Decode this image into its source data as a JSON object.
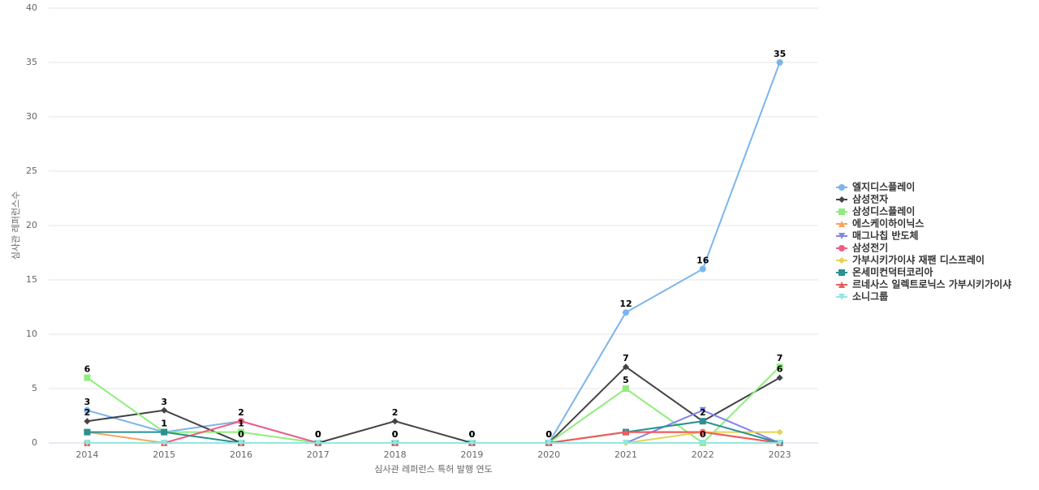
{
  "chart_data": {
    "type": "line",
    "x_label": "심사관 레퍼런스 특허 발행 연도",
    "y_label": "심사관 레퍼런스수",
    "categories": [
      "2014",
      "2015",
      "2016",
      "2017",
      "2018",
      "2019",
      "2020",
      "2021",
      "2022",
      "2023"
    ],
    "ylim": [
      0,
      40
    ],
    "yticks": [
      0,
      5,
      10,
      15,
      20,
      25,
      30,
      35,
      40
    ],
    "grid": true,
    "legend": "right",
    "series": [
      {
        "name": "엘지디스플레이",
        "color": "#7cb5ec",
        "marker": "circle",
        "values": [
          3,
          1,
          2,
          0,
          0,
          0,
          0,
          12,
          16,
          35
        ]
      },
      {
        "name": "삼성전자",
        "color": "#434348",
        "marker": "diamond",
        "values": [
          2,
          3,
          0,
          0,
          2,
          0,
          0,
          7,
          2,
          6
        ]
      },
      {
        "name": "삼성디스플레이",
        "color": "#90ed7d",
        "marker": "square",
        "values": [
          6,
          1,
          1,
          0,
          0,
          0,
          0,
          5,
          0,
          7
        ]
      },
      {
        "name": "에스케이하이닉스",
        "color": "#f7a35c",
        "marker": "triangle",
        "values": [
          1,
          0,
          0,
          0,
          0,
          0,
          0,
          1,
          1,
          0
        ]
      },
      {
        "name": "매그나칩 반도체",
        "color": "#8085e9",
        "marker": "triangle-down",
        "values": [
          0,
          0,
          0,
          0,
          0,
          0,
          0,
          0,
          3,
          0
        ]
      },
      {
        "name": "삼성전기",
        "color": "#f15c80",
        "marker": "circle",
        "values": [
          0,
          0,
          2,
          0,
          0,
          0,
          0,
          1,
          1,
          0
        ]
      },
      {
        "name": "가부시키가이샤 재팬 디스프레이",
        "color": "#e4d354",
        "marker": "diamond",
        "values": [
          0,
          0,
          0,
          0,
          0,
          0,
          0,
          0,
          1,
          1
        ]
      },
      {
        "name": "온세미컨덕터코리아",
        "color": "#2b908f",
        "marker": "square",
        "values": [
          1,
          1,
          0,
          0,
          0,
          0,
          0,
          1,
          2,
          0
        ]
      },
      {
        "name": "르네사스 일렉트로닉스 가부시키가이샤",
        "color": "#f45b5b",
        "marker": "triangle",
        "values": [
          0,
          0,
          0,
          0,
          0,
          0,
          0,
          1,
          1,
          0
        ]
      },
      {
        "name": "소니그룹",
        "color": "#91e8e1",
        "marker": "triangle-down",
        "values": [
          0,
          0,
          0,
          0,
          0,
          0,
          0,
          0,
          0,
          0
        ]
      }
    ]
  }
}
